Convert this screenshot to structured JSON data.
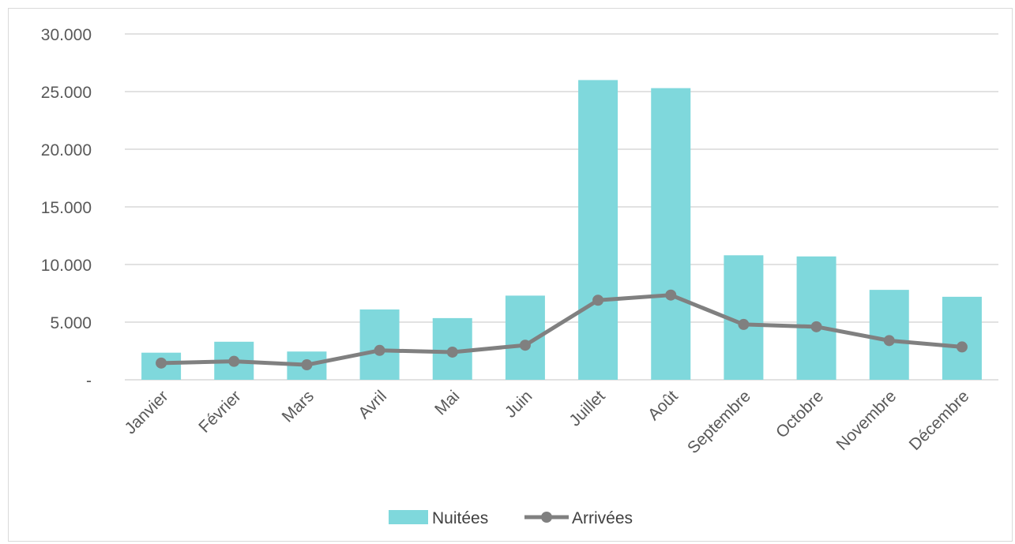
{
  "chart_data": {
    "type": "bar",
    "categories": [
      "Janvier",
      "Février",
      "Mars",
      "Avril",
      "Mai",
      "Juin",
      "Juillet",
      "Août",
      "Septembre",
      "Octobre",
      "Novembre",
      "Décembre"
    ],
    "series": [
      {
        "name": "Nuitées",
        "type": "bar",
        "color": "#7fd8dc",
        "values": [
          2350,
          3300,
          2450,
          6100,
          5350,
          7300,
          26000,
          25300,
          10800,
          10700,
          7800,
          7200
        ]
      },
      {
        "name": "Arrivées",
        "type": "line",
        "color": "#808080",
        "values": [
          1450,
          1600,
          1300,
          2550,
          2400,
          3000,
          6900,
          7350,
          4800,
          4600,
          3400,
          2850
        ]
      }
    ],
    "yticks": [
      "-",
      "5.000",
      "10.000",
      "15.000",
      "20.000",
      "25.000",
      "30.000"
    ],
    "ylim": [
      0,
      30000
    ],
    "grid": true,
    "legend_position": "bottom"
  }
}
